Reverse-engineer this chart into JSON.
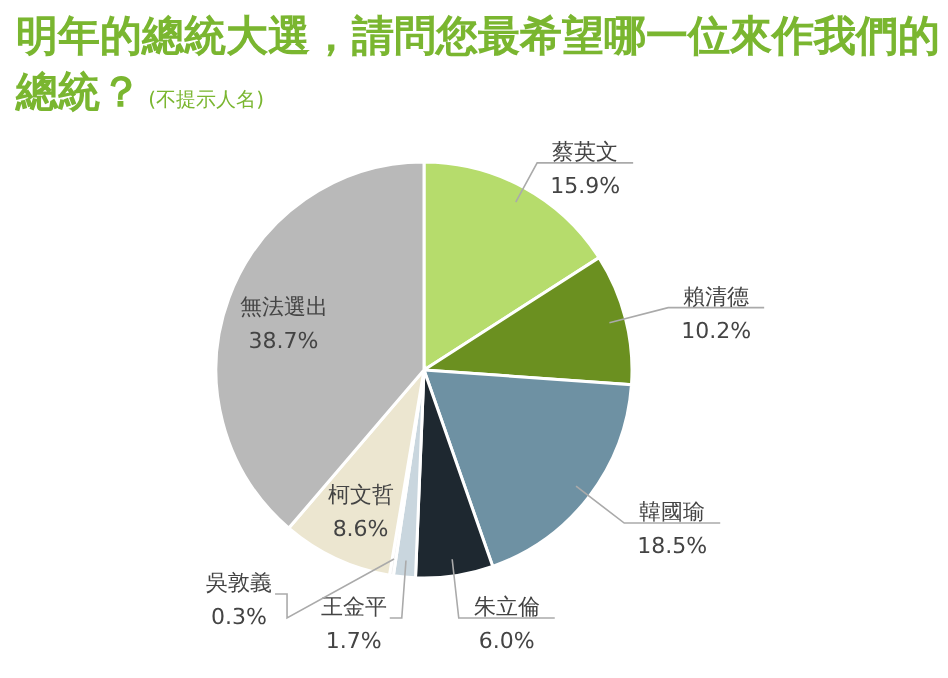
{
  "chart_data": {
    "type": "pie",
    "title": "明年的總統大選，請問您最希望哪一位來作我們的總統？",
    "subtitle": "(不提示人名)",
    "categories": [
      "蔡英文",
      "賴清德",
      "韓國瑜",
      "朱立倫",
      "王金平",
      "吳敦義",
      "柯文哲",
      "無法選出"
    ],
    "values": [
      15.9,
      10.2,
      18.5,
      6.0,
      1.7,
      0.3,
      8.6,
      38.7
    ],
    "value_labels": [
      "15.9%",
      "10.2%",
      "18.5%",
      "6.0%",
      "1.7%",
      "0.3%",
      "8.6%",
      "38.7%"
    ],
    "colors": [
      "#b6dc6c",
      "#6b9020",
      "#6e91a3",
      "#1e2830",
      "#c9d6de",
      "#eeeeee",
      "#ece6d0",
      "#b9b9b9"
    ]
  }
}
